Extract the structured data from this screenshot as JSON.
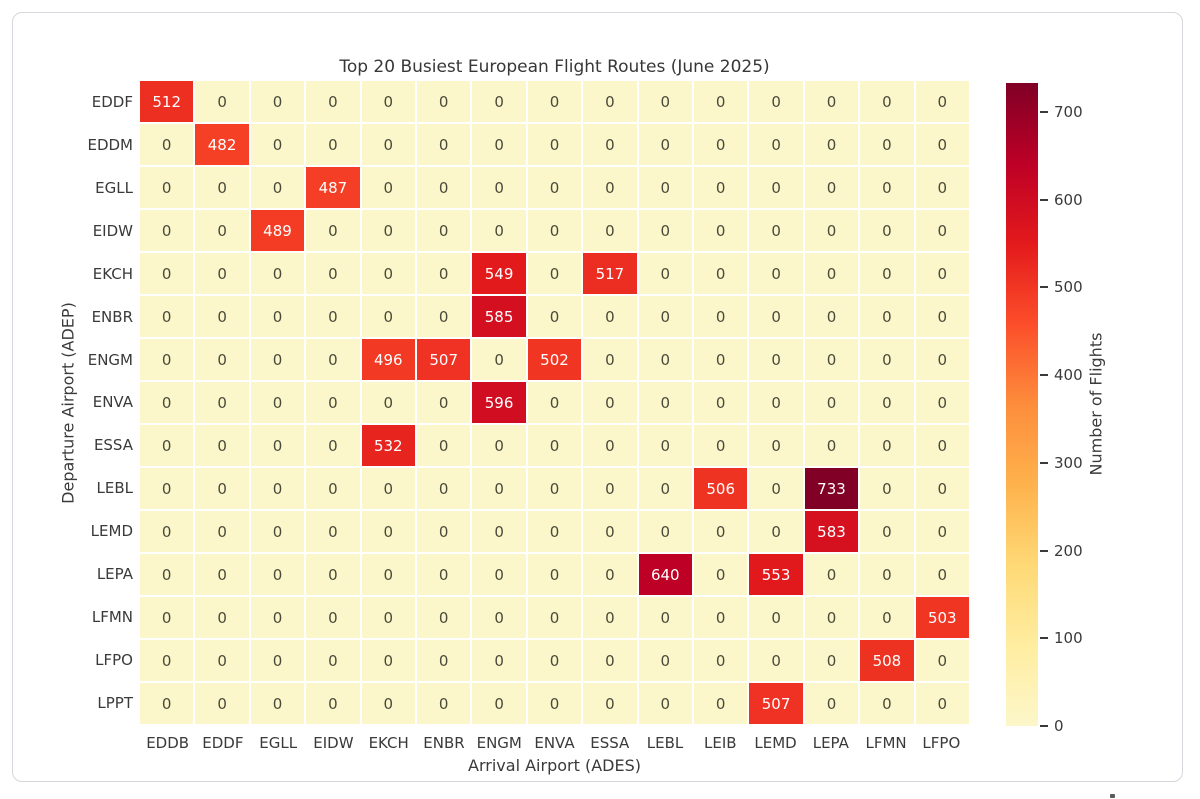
{
  "chart_data": {
    "type": "heatmap",
    "title": "Top 20 Busiest European Flight Routes (June 2025)",
    "xlabel": "Arrival Airport (ADES)",
    "ylabel": "Departure Airport (ADEP)",
    "colorbar_label": "Number of Flights",
    "x_categories": [
      "EDDB",
      "EDDF",
      "EGLL",
      "EIDW",
      "EKCH",
      "ENBR",
      "ENGM",
      "ENVA",
      "ESSA",
      "LEBL",
      "LEIB",
      "LEMD",
      "LEPA",
      "LFMN",
      "LFPO"
    ],
    "y_categories": [
      "EDDF",
      "EDDM",
      "EGLL",
      "EIDW",
      "EKCH",
      "ENBR",
      "ENGM",
      "ENVA",
      "ESSA",
      "LEBL",
      "LEMD",
      "LEPA",
      "LFMN",
      "LFPO",
      "LPPT"
    ],
    "matrix": [
      [
        512,
        0,
        0,
        0,
        0,
        0,
        0,
        0,
        0,
        0,
        0,
        0,
        0,
        0,
        0
      ],
      [
        0,
        482,
        0,
        0,
        0,
        0,
        0,
        0,
        0,
        0,
        0,
        0,
        0,
        0,
        0
      ],
      [
        0,
        0,
        0,
        487,
        0,
        0,
        0,
        0,
        0,
        0,
        0,
        0,
        0,
        0,
        0
      ],
      [
        0,
        0,
        489,
        0,
        0,
        0,
        0,
        0,
        0,
        0,
        0,
        0,
        0,
        0,
        0
      ],
      [
        0,
        0,
        0,
        0,
        0,
        0,
        549,
        0,
        517,
        0,
        0,
        0,
        0,
        0,
        0
      ],
      [
        0,
        0,
        0,
        0,
        0,
        0,
        585,
        0,
        0,
        0,
        0,
        0,
        0,
        0,
        0
      ],
      [
        0,
        0,
        0,
        0,
        496,
        507,
        0,
        502,
        0,
        0,
        0,
        0,
        0,
        0,
        0
      ],
      [
        0,
        0,
        0,
        0,
        0,
        0,
        596,
        0,
        0,
        0,
        0,
        0,
        0,
        0,
        0
      ],
      [
        0,
        0,
        0,
        0,
        532,
        0,
        0,
        0,
        0,
        0,
        0,
        0,
        0,
        0,
        0
      ],
      [
        0,
        0,
        0,
        0,
        0,
        0,
        0,
        0,
        0,
        0,
        506,
        0,
        733,
        0,
        0
      ],
      [
        0,
        0,
        0,
        0,
        0,
        0,
        0,
        0,
        0,
        0,
        0,
        0,
        583,
        0,
        0
      ],
      [
        0,
        0,
        0,
        0,
        0,
        0,
        0,
        0,
        0,
        640,
        0,
        553,
        0,
        0,
        0
      ],
      [
        0,
        0,
        0,
        0,
        0,
        0,
        0,
        0,
        0,
        0,
        0,
        0,
        0,
        0,
        503
      ],
      [
        0,
        0,
        0,
        0,
        0,
        0,
        0,
        0,
        0,
        0,
        0,
        0,
        0,
        508,
        0
      ],
      [
        0,
        0,
        0,
        0,
        0,
        0,
        0,
        0,
        0,
        0,
        0,
        507,
        0,
        0,
        0
      ]
    ],
    "vmin": 0,
    "vmax": 733,
    "colorbar_ticks": [
      0,
      100,
      200,
      300,
      400,
      500,
      600,
      700
    ],
    "colormap_name": "YlOrRd",
    "colormap_stops": [
      {
        "pos": 0.0,
        "color": "#FCF7CA"
      },
      {
        "pos": 0.125,
        "color": "#FFEDA0"
      },
      {
        "pos": 0.25,
        "color": "#FED976"
      },
      {
        "pos": 0.375,
        "color": "#FEB24C"
      },
      {
        "pos": 0.5,
        "color": "#FD8D3C"
      },
      {
        "pos": 0.625,
        "color": "#FC4E2A"
      },
      {
        "pos": 0.75,
        "color": "#E31A1C"
      },
      {
        "pos": 0.875,
        "color": "#BD0026"
      },
      {
        "pos": 1.0,
        "color": "#800026"
      }
    ],
    "grid_line_color": "#ffffff",
    "annotation_color_dark": "#4a4a3a",
    "annotation_color_light": "#ffffff",
    "text_color": "#3a3a3a",
    "legend_position": "right",
    "grid": false
  }
}
